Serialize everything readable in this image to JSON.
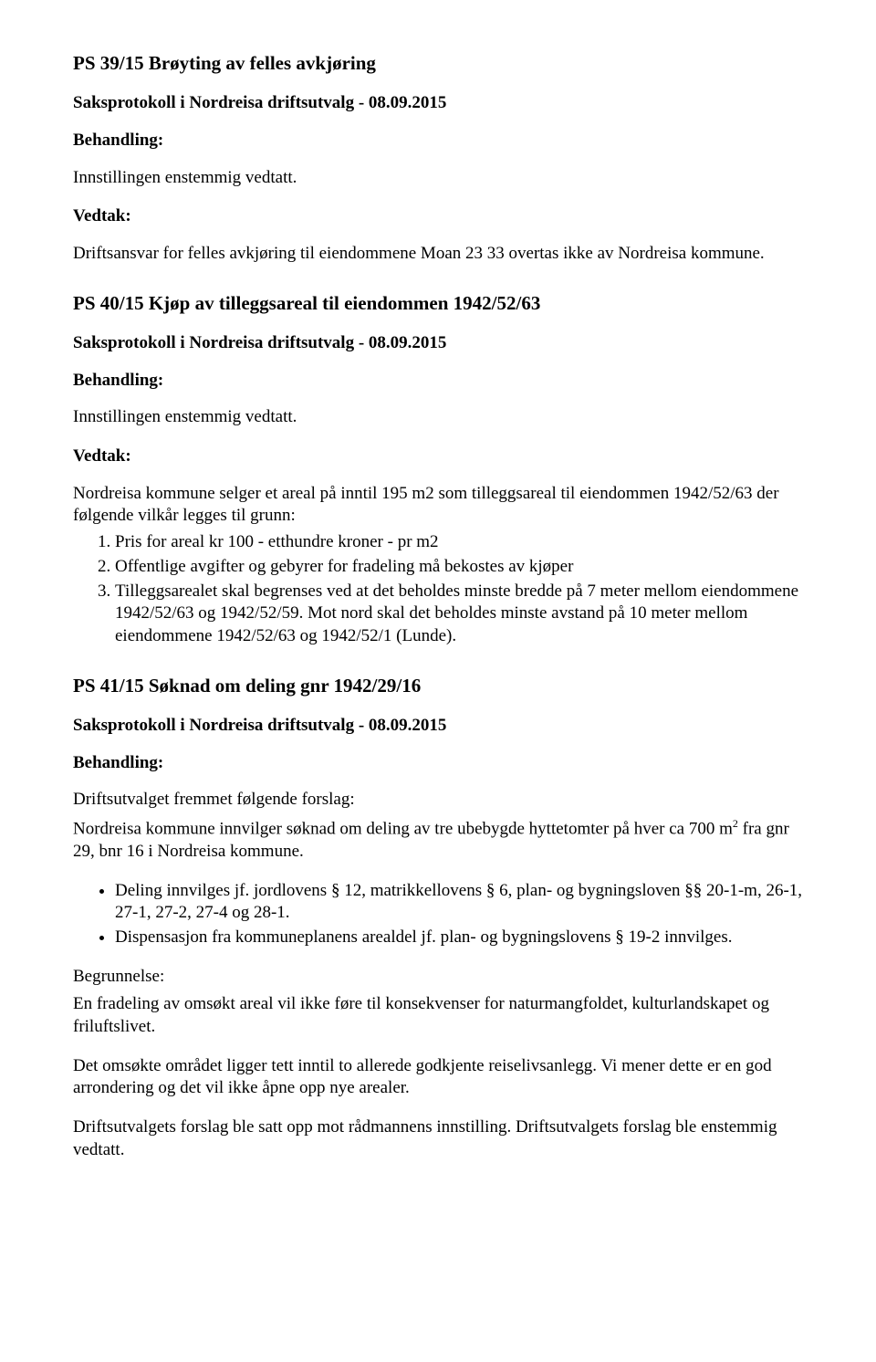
{
  "s39": {
    "title": "PS 39/15 Brøyting av felles avkjøring",
    "saksprotokoll": "Saksprotokoll i Nordreisa driftsutvalg - 08.09.2015",
    "behandling_label": "Behandling:",
    "behandling_text": "Innstillingen enstemmig vedtatt.",
    "vedtak_label": "Vedtak:",
    "vedtak_text": "Driftsansvar for felles avkjøring til eiendommene Moan 23 33 overtas ikke av Nordreisa kommune."
  },
  "s40": {
    "title": "PS 40/15 Kjøp av tilleggsareal til eiendommen 1942/52/63",
    "saksprotokoll": "Saksprotokoll i Nordreisa driftsutvalg - 08.09.2015",
    "behandling_label": "Behandling:",
    "behandling_text": "Innstillingen enstemmig vedtatt.",
    "vedtak_label": "Vedtak:",
    "vedtak_intro": "Nordreisa kommune selger et areal på inntil 195 m2 som tilleggsareal til eiendommen 1942/52/63 der følgende vilkår legges til grunn:",
    "items": {
      "i1": "Pris for areal kr 100 - etthundre kroner - pr m2",
      "i2": "Offentlige avgifter og gebyrer for fradeling må bekostes av kjøper",
      "i3": "Tilleggsarealet skal begrenses ved at det beholdes minste bredde på 7 meter mellom eiendommene 1942/52/63 og 1942/52/59. Mot nord skal det beholdes minste avstand på 10 meter mellom eiendommene 1942/52/63 og 1942/52/1 (Lunde)."
    }
  },
  "s41": {
    "title": "PS 41/15 Søknad om deling gnr 1942/29/16",
    "saksprotokoll": "Saksprotokoll i Nordreisa driftsutvalg - 08.09.2015",
    "behandling_label": "Behandling:",
    "forslag_line": "Driftsutvalget fremmet følgende forslag:",
    "forslag_pre": "Nordreisa kommune innvilger søknad om deling av tre ubebygde hyttetomter på hver ca 700 m",
    "forslag_sup": "2",
    "forslag_post": " fra gnr 29, bnr 16 i Nordreisa kommune.",
    "bullets": {
      "b1": "Deling innvilges jf. jordlovens § 12, matrikkellovens § 6, plan- og bygningsloven §§ 20-1-m, 26-1, 27-1, 27-2, 27-4 og 28-1.",
      "b2": "Dispensasjon fra kommuneplanens arealdel jf. plan- og bygningslovens § 19-2 innvilges."
    },
    "begr_label": "Begrunnelse:",
    "begr_p1": "En fradeling av omsøkt areal vil ikke føre til konsekvenser for naturmangfoldet, kulturlandskapet og friluftslivet.",
    "begr_p2": "Det omsøkte området ligger tett inntil to allerede godkjente reiselivsanlegg. Vi mener dette er en god arrondering og det vil ikke åpne opp nye arealer.",
    "outcome": "Driftsutvalgets forslag ble satt opp mot rådmannens innstilling. Driftsutvalgets forslag ble enstemmig vedtatt."
  }
}
